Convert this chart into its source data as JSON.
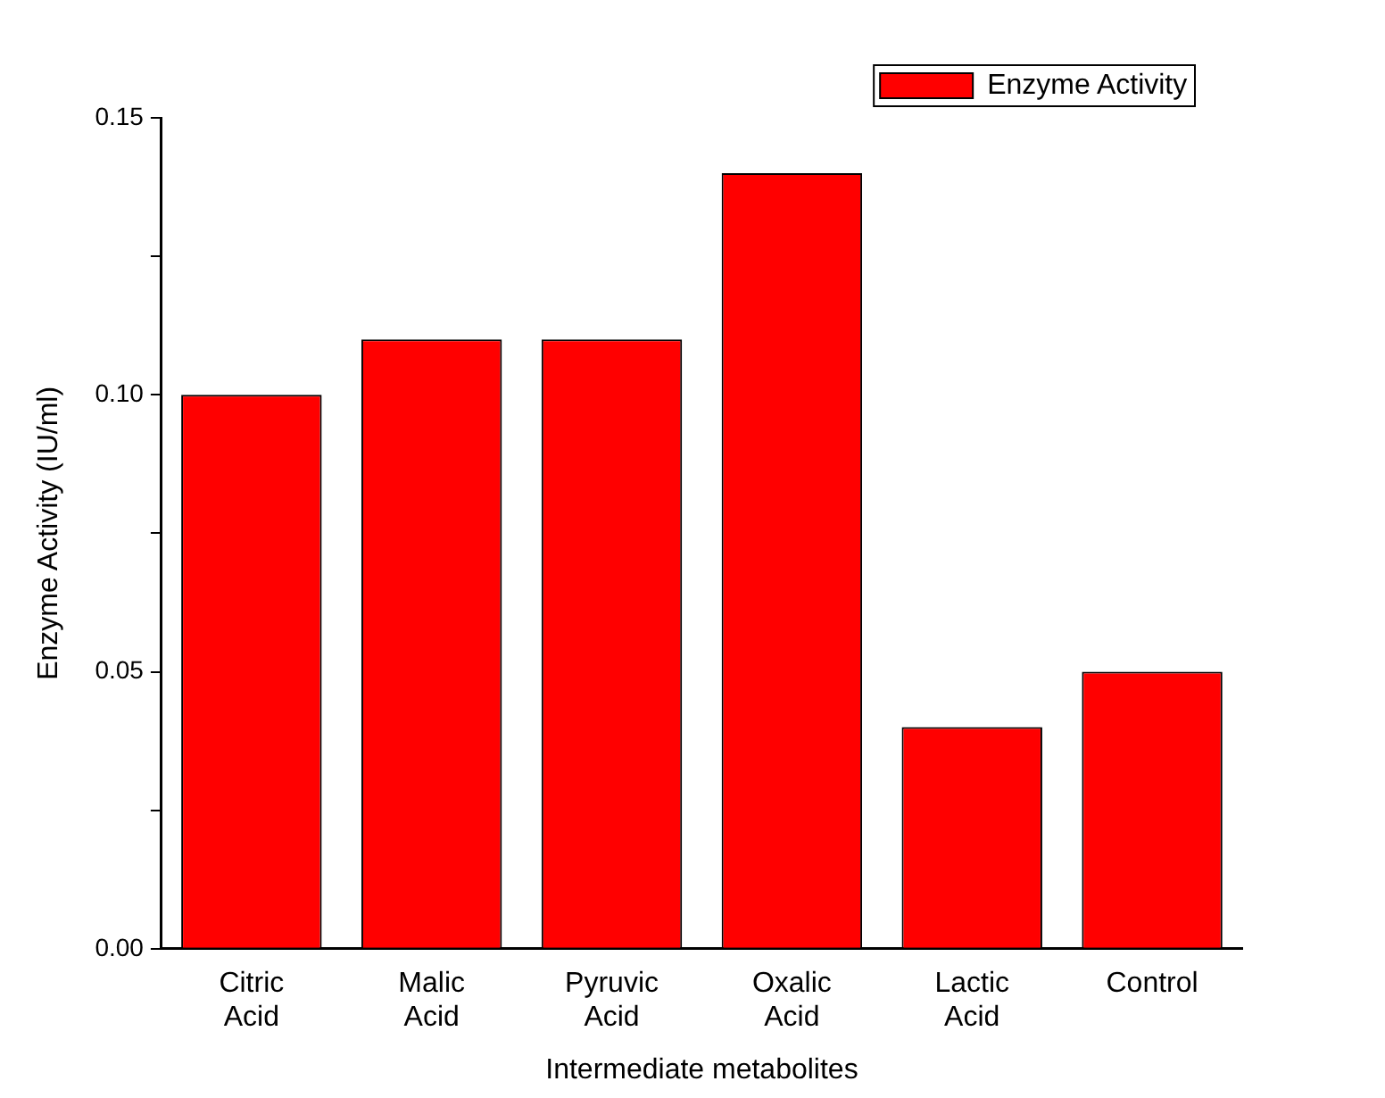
{
  "chart_data": {
    "type": "bar",
    "xlabel": "Intermediate metabolites",
    "ylabel": "Enzyme Activity (IU/ml)",
    "categories": [
      "Citric Acid",
      "Malic Acid",
      "Pyruvic Acid",
      "Oxalic Acid",
      "Lactic Acid",
      "Control"
    ],
    "series": [
      {
        "name": "Enzyme Activity",
        "color": "#ff0000",
        "values": [
          0.1,
          0.11,
          0.11,
          0.14,
          0.04,
          0.05
        ]
      }
    ],
    "ylim": [
      0,
      0.15
    ],
    "yticks": [
      {
        "value": 0,
        "label": "0.00"
      },
      {
        "value": 0.025,
        "label": null
      },
      {
        "value": 0.05,
        "label": "0.05"
      },
      {
        "value": 0.075,
        "label": null
      },
      {
        "value": 0.1,
        "label": "0.10"
      },
      {
        "value": 0.125,
        "label": null
      },
      {
        "value": 0.15,
        "label": "0.15"
      }
    ],
    "grid": false,
    "legend": "top right"
  }
}
